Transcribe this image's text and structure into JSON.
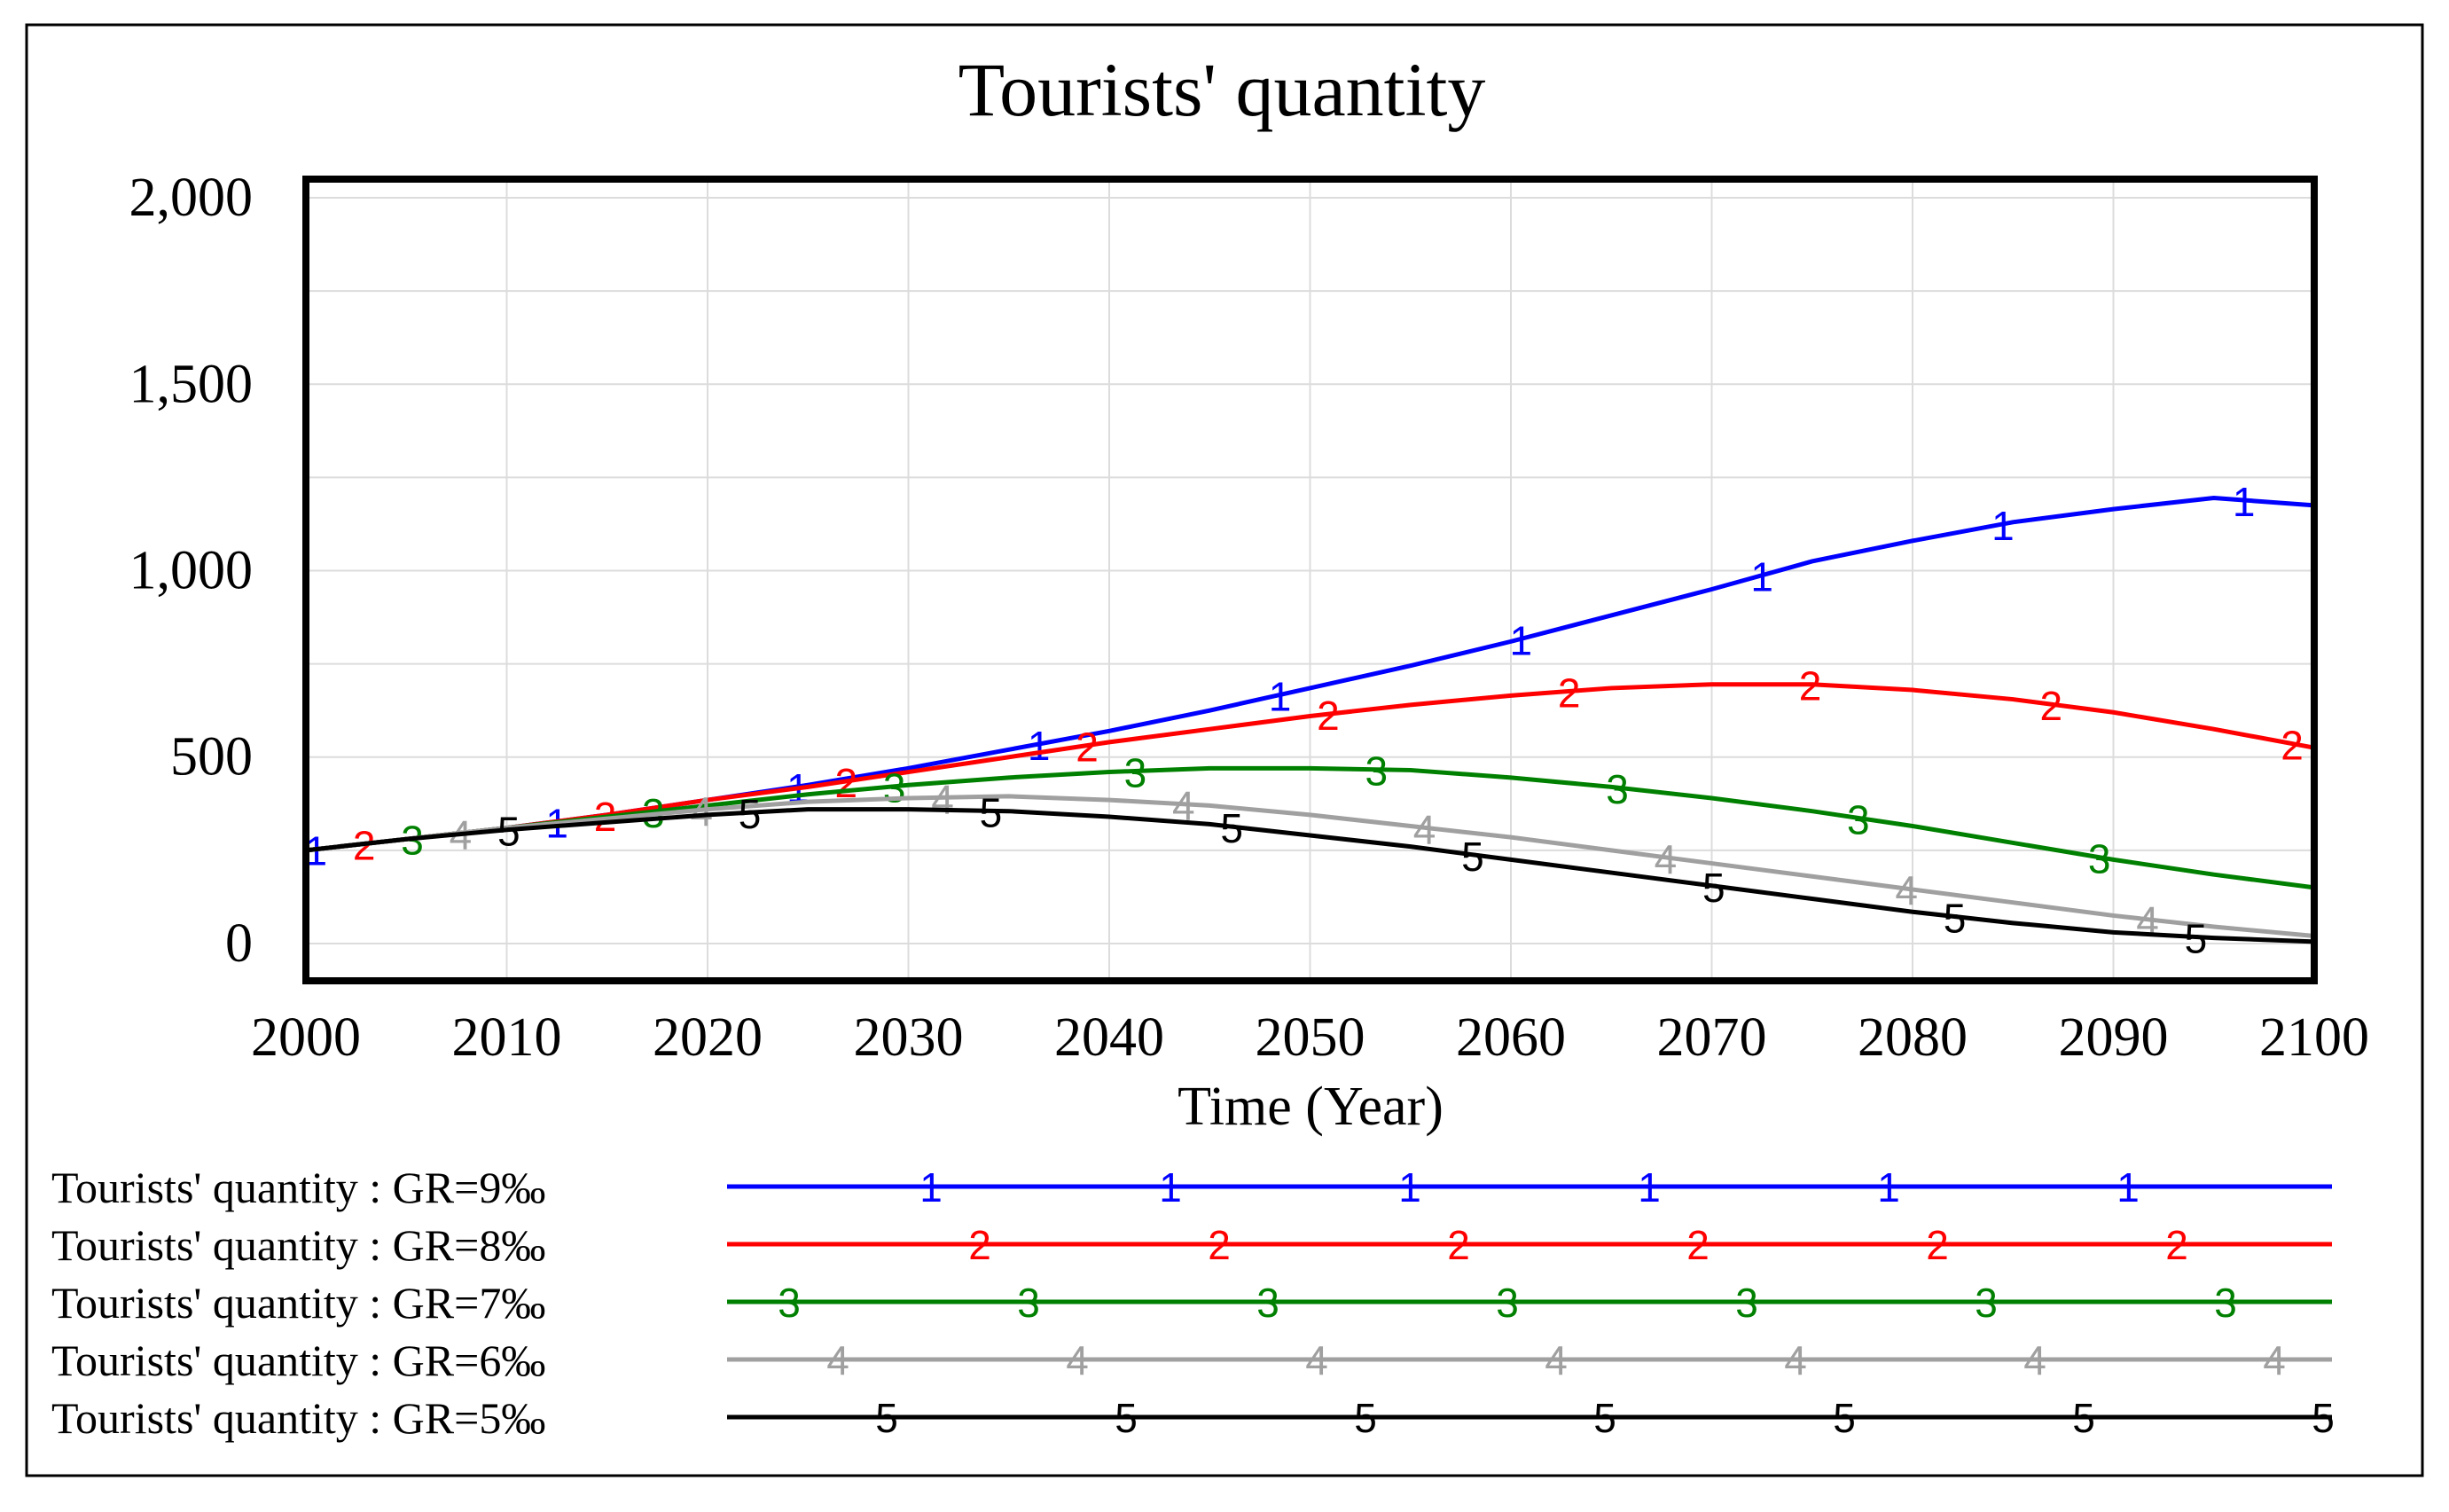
{
  "chart_data": {
    "type": "line",
    "title": "Tourists' quantity",
    "xlabel": "Time (Year)",
    "ylabel": "",
    "xlim": [
      2000,
      2100
    ],
    "ylim": [
      -100,
      2050
    ],
    "x_ticks": [
      "2000",
      "2010",
      "2020",
      "2030",
      "2040",
      "2050",
      "2060",
      "2070",
      "2080",
      "2090",
      "2100"
    ],
    "y_ticks": [
      "0",
      "500",
      "1,000",
      "1,500",
      "2,000"
    ],
    "x_tick_values": [
      2000,
      2010,
      2020,
      2030,
      2040,
      2050,
      2060,
      2070,
      2080,
      2090,
      2100
    ],
    "y_tick_values": [
      0,
      500,
      1000,
      1500,
      2000
    ],
    "grid": true,
    "legend_position": "bottom",
    "x": [
      2000,
      2005,
      2010,
      2015,
      2020,
      2025,
      2030,
      2035,
      2040,
      2045,
      2050,
      2055,
      2060,
      2065,
      2070,
      2075,
      2080,
      2085,
      2090,
      2095,
      2100
    ],
    "series": [
      {
        "name": "Tourists' quantity : GR=9‰",
        "marker": "1",
        "color": "#0000ff",
        "values": [
          250,
          280,
          310,
          345,
          385,
          425,
          470,
          520,
          570,
          625,
          685,
          745,
          810,
          880,
          950,
          1025,
          1080,
          1130,
          1165,
          1195,
          1175
        ]
      },
      {
        "name": "Tourists' quantity : GR=8‰",
        "marker": "2",
        "color": "#ff0000",
        "values": [
          250,
          280,
          310,
          345,
          385,
          420,
          460,
          500,
          540,
          575,
          610,
          640,
          665,
          685,
          695,
          695,
          680,
          655,
          620,
          575,
          525
        ]
      },
      {
        "name": "Tourists' quantity : GR=7‰",
        "marker": "3",
        "color": "#008000",
        "values": [
          250,
          280,
          310,
          340,
          370,
          400,
          425,
          445,
          460,
          470,
          470,
          465,
          445,
          420,
          390,
          355,
          315,
          270,
          225,
          185,
          150
        ]
      },
      {
        "name": "Tourists' quantity : GR=6‰",
        "marker": "4",
        "color": "#a0a0a0",
        "values": [
          250,
          280,
          310,
          335,
          360,
          380,
          390,
          395,
          385,
          370,
          345,
          315,
          285,
          250,
          215,
          180,
          145,
          110,
          75,
          45,
          20
        ]
      },
      {
        "name": "Tourists' quantity : GR=5‰",
        "marker": "5",
        "color": "#000000",
        "values": [
          250,
          280,
          305,
          325,
          345,
          360,
          360,
          355,
          340,
          320,
          290,
          260,
          225,
          190,
          155,
          120,
          85,
          55,
          30,
          15,
          5
        ]
      }
    ]
  }
}
